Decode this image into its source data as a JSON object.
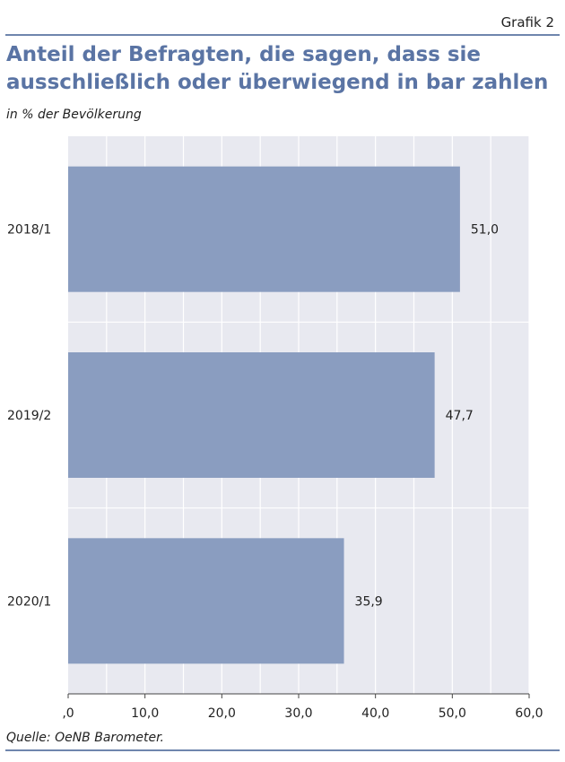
{
  "header": {
    "figure_label": "Grafik 2",
    "title_lines": [
      "Anteil der Befragten, die sagen, dass sie",
      "ausschließlich oder überwiegend in bar zahlen"
    ],
    "subtitle": "in % der Bevölkerung"
  },
  "footer": {
    "source": "Quelle: OeNB Barometer."
  },
  "colors": {
    "bar": "#8a9dc0",
    "plot_background": "#e8e9f0",
    "gridline": "#ffffff",
    "accent": "#5a74a4",
    "rule": "#6f86ad"
  },
  "chart_data": {
    "type": "bar",
    "orientation": "horizontal",
    "categories": [
      "2018/1",
      "2019/2",
      "2020/1"
    ],
    "values": [
      51.0,
      47.7,
      35.9
    ],
    "value_labels": [
      "51,0",
      "47,7",
      "35,9"
    ],
    "xlim": [
      0,
      60
    ],
    "x_ticks": [
      0,
      10,
      20,
      30,
      40,
      50,
      60
    ],
    "x_tick_labels": [
      ",0",
      "10,0",
      "20,0",
      "30,0",
      "40,0",
      "50,0",
      "60,0"
    ],
    "title": "Anteil der Befragten, die sagen, dass sie ausschließlich oder überwiegend in bar zahlen",
    "subtitle": "in % der Bevölkerung",
    "grid": true
  }
}
